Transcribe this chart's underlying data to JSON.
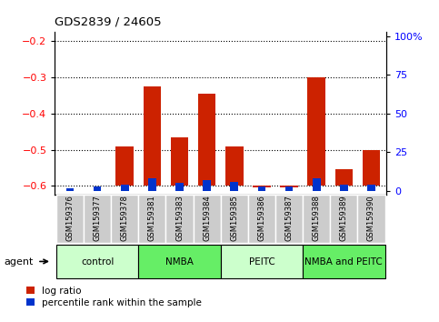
{
  "title": "GDS2839 / 24605",
  "samples": [
    "GSM159376",
    "GSM159377",
    "GSM159378",
    "GSM159381",
    "GSM159383",
    "GSM159384",
    "GSM159385",
    "GSM159386",
    "GSM159387",
    "GSM159388",
    "GSM159389",
    "GSM159390"
  ],
  "log_ratio": [
    -0.6,
    -0.6,
    -0.49,
    -0.325,
    -0.465,
    -0.345,
    -0.49,
    -0.605,
    -0.605,
    -0.3,
    -0.555,
    -0.5
  ],
  "percentile_rank": [
    2,
    3,
    4,
    8,
    5,
    7,
    6,
    3,
    3,
    8,
    4,
    4
  ],
  "groups": [
    {
      "label": "control",
      "start": 0,
      "end": 2,
      "color": "#ccffcc"
    },
    {
      "label": "NMBA",
      "start": 3,
      "end": 5,
      "color": "#66ee66"
    },
    {
      "label": "PEITC",
      "start": 6,
      "end": 8,
      "color": "#ccffcc"
    },
    {
      "label": "NMBA and PEITC",
      "start": 9,
      "end": 11,
      "color": "#66ee66"
    }
  ],
  "ylim_left": [
    -0.625,
    -0.175
  ],
  "yticks_left": [
    -0.6,
    -0.5,
    -0.4,
    -0.3,
    -0.2
  ],
  "ylim_right": [
    -2.5,
    102.5
  ],
  "yticks_right": [
    0,
    25,
    50,
    75,
    100
  ],
  "bar_base": -0.6,
  "bar_color_red": "#cc2200",
  "bar_color_blue": "#0033cc",
  "bg_color": "#cccccc",
  "plot_bg": "#ffffff",
  "agent_label": "agent",
  "legend_red": "log ratio",
  "legend_blue": "percentile rank within the sample"
}
